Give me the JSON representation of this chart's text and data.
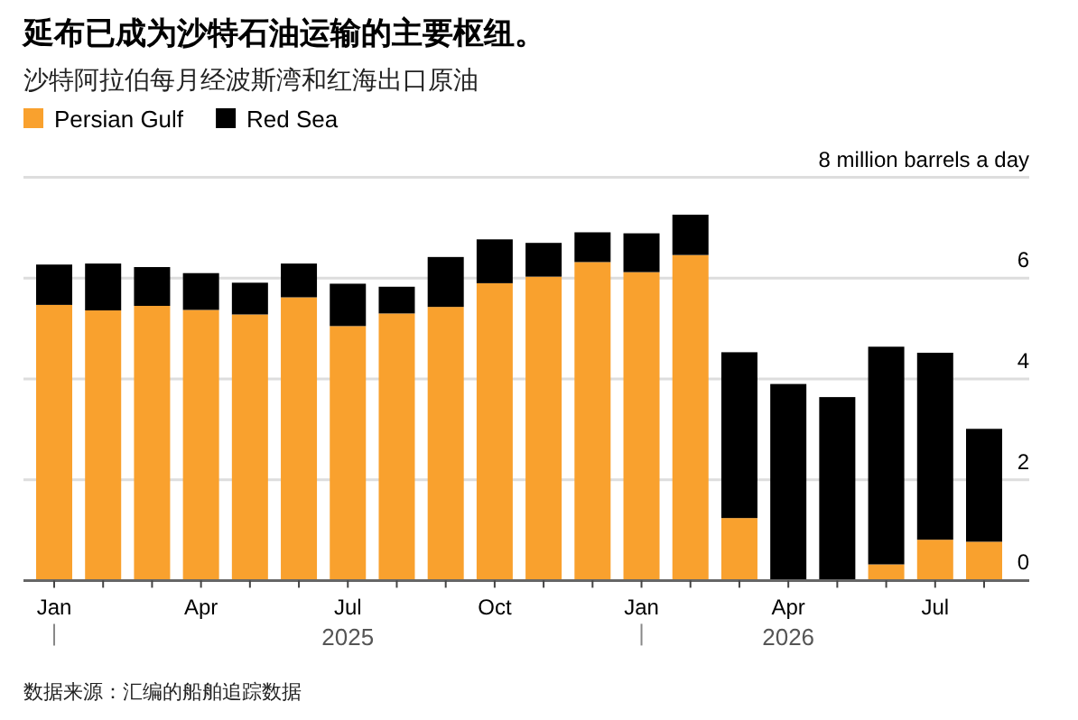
{
  "chart_data": {
    "type": "bar",
    "stacked": true,
    "title": "延布已成为沙特石油运输的主要枢纽。",
    "subtitle": "沙特阿拉伯每月经波斯湾和红海出口原油",
    "categories": [
      "Jan",
      null,
      null,
      "Apr",
      null,
      null,
      "Jul",
      null,
      null,
      "Oct",
      null,
      null,
      "Jan",
      null,
      null,
      "Apr",
      null,
      null,
      "Jul",
      null
    ],
    "series": [
      {
        "name": "Persian Gulf",
        "color": "#f9a12e",
        "values": [
          5.47,
          5.36,
          5.45,
          5.37,
          5.28,
          5.62,
          5.05,
          5.3,
          5.43,
          5.9,
          6.03,
          6.32,
          6.12,
          6.46,
          1.24,
          0,
          0,
          0.32,
          0.81,
          0.77
        ]
      },
      {
        "name": "Red Sea",
        "color": "#000000",
        "values": [
          0.8,
          0.93,
          0.77,
          0.73,
          0.63,
          0.67,
          0.84,
          0.53,
          0.99,
          0.87,
          0.67,
          0.59,
          0.77,
          0.8,
          3.29,
          3.9,
          3.64,
          4.32,
          3.71,
          2.24
        ]
      }
    ],
    "ylim": [
      0,
      8
    ],
    "yticks": [
      0,
      2,
      4,
      6,
      {
        "value": 8,
        "label": "8 million barrels a day"
      }
    ],
    "grid": "y",
    "legend": "top left",
    "annotations": [
      "2025",
      "2026",
      "数据来源：汇编的船舶追踪数据"
    ]
  }
}
